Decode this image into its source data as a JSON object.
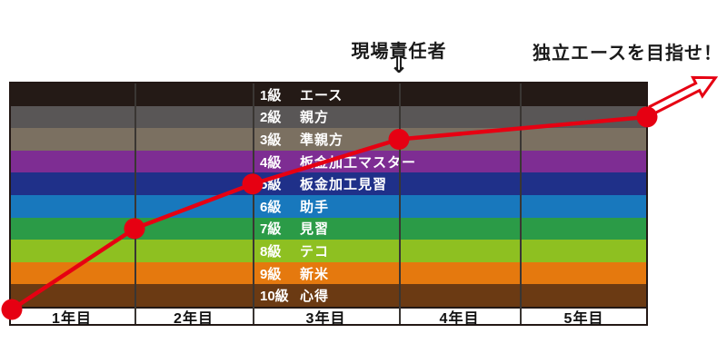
{
  "annotations": {
    "site_manager_label": "現場責任者",
    "site_manager_arrow_icon": "⇓",
    "goal_label": "独立エースを目指せ！"
  },
  "colors": {
    "line_red": "#e60012",
    "border_black": "#231815",
    "grid_line": "#3a3633",
    "band_text": "#ffffff",
    "annotation_text": "#1a1a1a",
    "axis_background": "#ffffff"
  },
  "chart_data": {
    "type": "line",
    "x_categories": [
      "1年目",
      "2年目",
      "3年目",
      "4年目",
      "5年目"
    ],
    "rank_bands": [
      {
        "grade": "1級",
        "name": "エース",
        "color": "#241a16"
      },
      {
        "grade": "2級",
        "name": "親方",
        "color": "#595656"
      },
      {
        "grade": "3級",
        "name": "準親方",
        "color": "#7b7061"
      },
      {
        "grade": "4級",
        "name": "板金加工マスター",
        "color": "#7e2d93"
      },
      {
        "grade": "5級",
        "name": "板金加工見習",
        "color": "#1f3089"
      },
      {
        "grade": "6級",
        "name": "助手",
        "color": "#1878bd"
      },
      {
        "grade": "7級",
        "name": "見習",
        "color": "#2b9b47"
      },
      {
        "grade": "8級",
        "name": "テコ",
        "color": "#8ec021"
      },
      {
        "grade": "9級",
        "name": "新米",
        "color": "#e5790e"
      },
      {
        "grade": "10級",
        "name": "心得",
        "color": "#6b3a13"
      }
    ],
    "milestones": [
      {
        "end_of_year": 0,
        "grade": 10,
        "position": "start-bottom"
      },
      {
        "end_of_year": 1,
        "grade": 7
      },
      {
        "end_of_year": 2,
        "grade": 5
      },
      {
        "end_of_year": 3,
        "grade": 3,
        "annotation": "現場責任者"
      },
      {
        "end_of_year": 5,
        "grade": 2,
        "annotation": "独立エースを目指せ！"
      }
    ],
    "line_color": "#e60012",
    "grid": "vertical-year-dividers",
    "legend": "none",
    "ylabel": "",
    "xlabel": ""
  }
}
